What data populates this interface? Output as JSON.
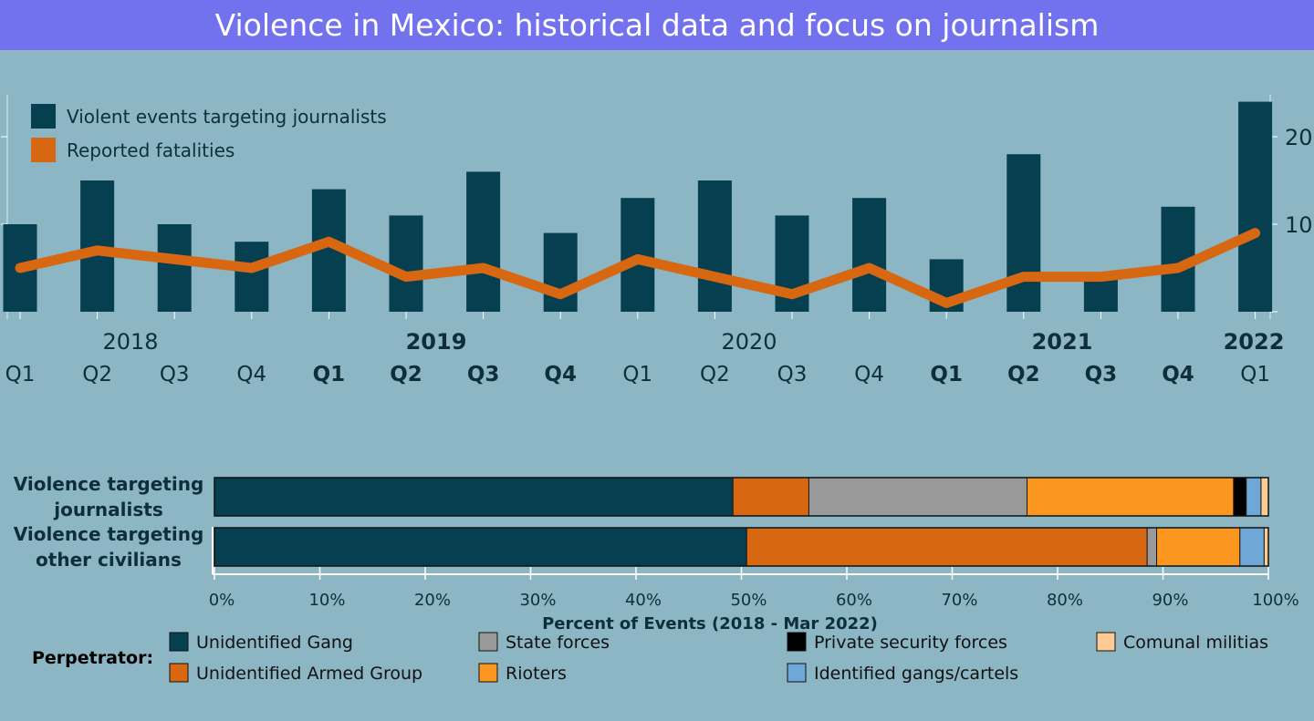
{
  "title": "Violence in Mexico: historical data and focus on journalism",
  "colors": {
    "background": "#8cb6c3",
    "title_bar": "#7271ee",
    "bars": "#063f50",
    "line": "#d86712",
    "text_dark": "#0e2f3a"
  },
  "chart_data": [
    {
      "type": "bar",
      "title": "",
      "xlabel": "",
      "ylabel": "",
      "ylim": [
        0,
        24
      ],
      "yticks": [
        "10",
        "20"
      ],
      "legend_position": "top-left",
      "x_years": [
        {
          "label": "2018",
          "bold": false
        },
        {
          "label": "2019",
          "bold": true
        },
        {
          "label": "2020",
          "bold": false
        },
        {
          "label": "2021",
          "bold": true
        },
        {
          "label": "2022",
          "bold": true
        }
      ],
      "categories": [
        {
          "label": "Q1",
          "bold": false
        },
        {
          "label": "Q2",
          "bold": false
        },
        {
          "label": "Q3",
          "bold": false
        },
        {
          "label": "Q4",
          "bold": false
        },
        {
          "label": "Q1",
          "bold": true
        },
        {
          "label": "Q2",
          "bold": true
        },
        {
          "label": "Q3",
          "bold": true
        },
        {
          "label": "Q4",
          "bold": true
        },
        {
          "label": "Q1",
          "bold": false
        },
        {
          "label": "Q2",
          "bold": false
        },
        {
          "label": "Q3",
          "bold": false
        },
        {
          "label": "Q4",
          "bold": false
        },
        {
          "label": "Q1",
          "bold": true
        },
        {
          "label": "Q2",
          "bold": true
        },
        {
          "label": "Q3",
          "bold": true
        },
        {
          "label": "Q4",
          "bold": true
        },
        {
          "label": "Q1",
          "bold": false
        }
      ],
      "series": [
        {
          "name": "Violent events targeting journalists",
          "kind": "bar",
          "color": "#063f50",
          "values": [
            10,
            15,
            10,
            8,
            14,
            11,
            16,
            9,
            13,
            15,
            11,
            13,
            6,
            18,
            4,
            12,
            24
          ]
        },
        {
          "name": "Reported fatalities",
          "kind": "line",
          "color": "#d86712",
          "values": [
            5,
            7,
            6,
            5,
            8,
            4,
            5,
            2,
            6,
            4,
            2,
            5,
            1,
            4,
            4,
            5,
            9
          ]
        }
      ]
    },
    {
      "type": "bar",
      "orientation": "horizontal-stacked",
      "title": "",
      "xlabel": "Percent of Events  (2018 - Mar 2022)",
      "xlim": [
        0,
        100
      ],
      "xticks": [
        "0%",
        "10%",
        "20%",
        "30%",
        "40%",
        "50%",
        "60%",
        "70%",
        "80%",
        "90%",
        "100%"
      ],
      "categories": [
        "Violence targeting journalists",
        "Violence targeting other civilians"
      ],
      "category_lines": [
        [
          "Violence targeting",
          "journalists"
        ],
        [
          "Violence targeting",
          "other civilians"
        ]
      ],
      "legend_title": "Perpetrator:",
      "series": [
        {
          "name": "Unidentified Gang",
          "color": "#063f50",
          "values": [
            49.2,
            50.5
          ]
        },
        {
          "name": "Unidentified Armed Group",
          "color": "#d86712",
          "values": [
            7.2,
            38.0
          ]
        },
        {
          "name": "State forces",
          "color": "#999999",
          "values": [
            20.7,
            0.9
          ]
        },
        {
          "name": "Rioters",
          "color": "#fb961f",
          "values": [
            19.6,
            7.9
          ]
        },
        {
          "name": "Private security forces",
          "color": "#000000",
          "values": [
            1.2,
            0
          ]
        },
        {
          "name": "Identified gangs/cartels",
          "color": "#6fa8d6",
          "values": [
            1.4,
            2.3
          ]
        },
        {
          "name": "Comunal militias",
          "color": "#fecb92",
          "values": [
            0.7,
            0.4
          ]
        }
      ]
    }
  ]
}
